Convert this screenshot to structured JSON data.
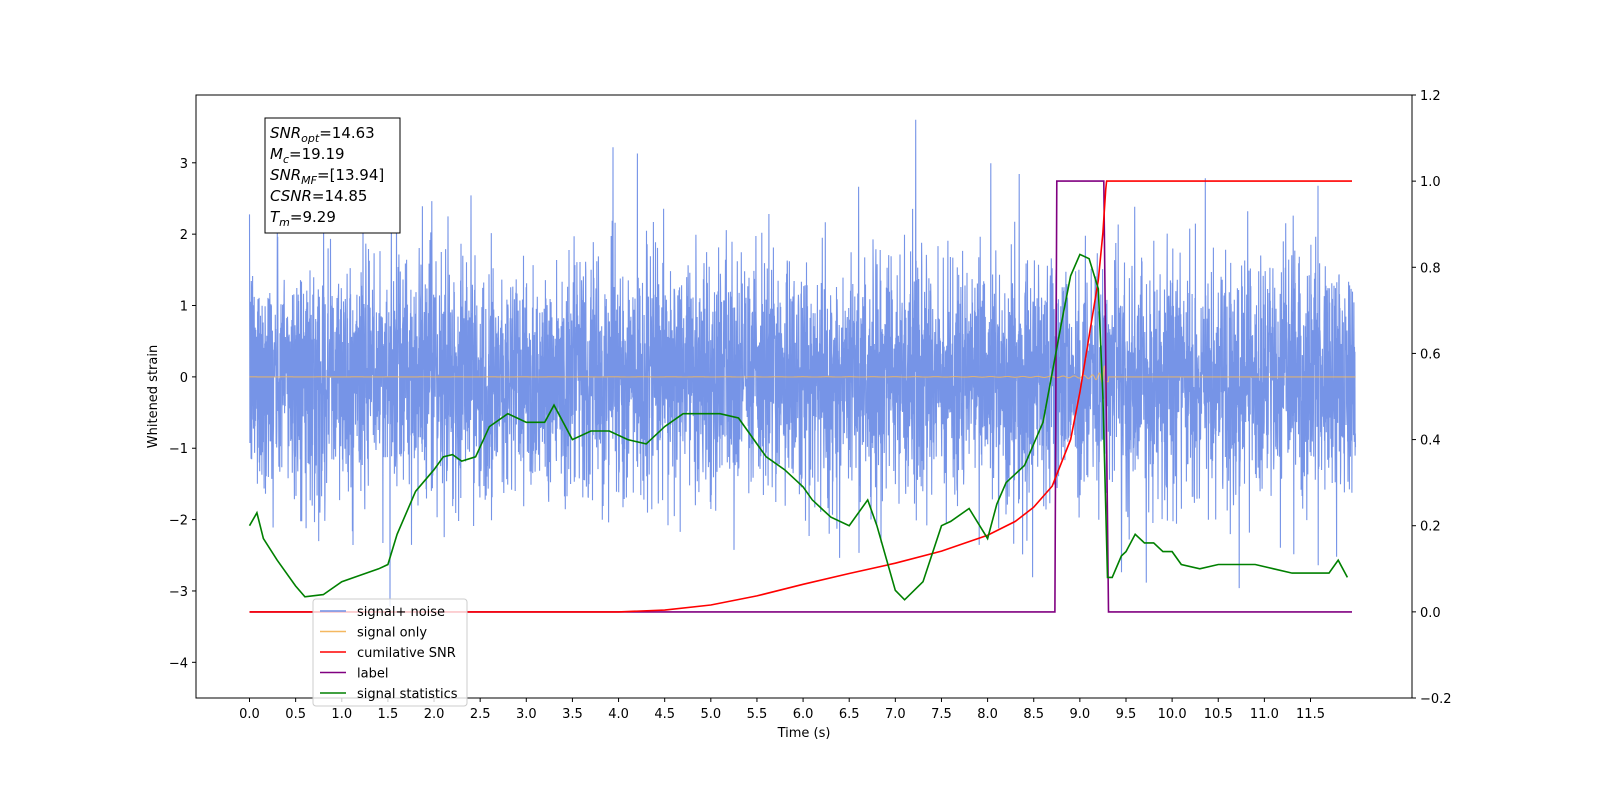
{
  "chart_data": {
    "type": "line",
    "title": "",
    "xlabel": "Time (s)",
    "ylabel": "Whitened strain",
    "xlim": [
      -0.58,
      12.6
    ],
    "ylim": [
      -4.5,
      3.95
    ],
    "y2lim": [
      -0.2,
      1.2
    ],
    "x_ticks": [
      "0.0",
      "0.5",
      "1.0",
      "1.5",
      "2.0",
      "2.5",
      "3.0",
      "3.5",
      "4.0",
      "4.5",
      "5.0",
      "5.5",
      "6.0",
      "6.5",
      "7.0",
      "7.5",
      "8.0",
      "8.5",
      "9.0",
      "9.5",
      "10.0",
      "10.5",
      "11.0",
      "11.5"
    ],
    "y_ticks": [
      "3",
      "2",
      "1",
      "0",
      "−1",
      "−2",
      "−3",
      "−4"
    ],
    "y2_ticks": [
      "1.2",
      "1.0",
      "0.8",
      "0.6",
      "0.4",
      "0.2",
      "0.0",
      "−0.2"
    ],
    "grid": false,
    "legend_position": "lower-left",
    "merger_time": 9.29,
    "label_window": [
      8.73,
      9.28
    ],
    "annotation": {
      "lines": [
        {
          "sym": "SNR",
          "sub": "opt",
          "value": "=14.63"
        },
        {
          "sym": "M",
          "sub": "c",
          "value": "=19.19"
        },
        {
          "sym": "SNR",
          "sub": "MF",
          "value": "=[13.94]"
        },
        {
          "sym": "CSNR",
          "sub": "",
          "value": "=14.85"
        },
        {
          "sym": "T",
          "sub": "m",
          "value": "=9.29"
        }
      ]
    },
    "series": [
      {
        "name": "signal+ noise",
        "color": "#6f8ee6",
        "axis": "left",
        "kind": "noise",
        "amplitude_typical": 1.9,
        "amplitude_peak": 3.6
      },
      {
        "name": "signal only",
        "color": "#f4b860",
        "axis": "left",
        "kind": "chirp"
      },
      {
        "name": "cumilative SNR",
        "color": "#ff0000",
        "axis": "right",
        "x": [
          0.0,
          4.0,
          4.5,
          5.0,
          5.5,
          6.0,
          6.5,
          7.0,
          7.5,
          8.0,
          8.3,
          8.5,
          8.7,
          8.9,
          9.0,
          9.1,
          9.2,
          9.25,
          9.28,
          9.29,
          11.95
        ],
        "y": [
          0.0,
          0.0,
          0.004,
          0.016,
          0.037,
          0.064,
          0.089,
          0.113,
          0.141,
          0.178,
          0.21,
          0.243,
          0.292,
          0.4,
          0.51,
          0.64,
          0.77,
          0.88,
          0.98,
          1.0,
          1.0
        ]
      },
      {
        "name": "label",
        "color": "#800080",
        "axis": "right",
        "x": [
          0.0,
          8.73,
          8.75,
          9.26,
          9.31,
          11.95
        ],
        "y": [
          0.0,
          0.0,
          1.0,
          1.0,
          0.0,
          0.0
        ]
      },
      {
        "name": "signal statistics",
        "color": "#008000",
        "axis": "right",
        "x": [
          0.0,
          0.08,
          0.15,
          0.3,
          0.5,
          0.6,
          0.8,
          1.0,
          1.2,
          1.4,
          1.5,
          1.6,
          1.8,
          2.0,
          2.1,
          2.2,
          2.3,
          2.45,
          2.6,
          2.8,
          2.9,
          3.0,
          3.2,
          3.3,
          3.5,
          3.7,
          3.9,
          4.1,
          4.3,
          4.5,
          4.7,
          4.9,
          5.1,
          5.3,
          5.5,
          5.6,
          5.8,
          6.0,
          6.1,
          6.2,
          6.3,
          6.5,
          6.7,
          6.8,
          7.0,
          7.1,
          7.3,
          7.5,
          7.6,
          7.8,
          8.0,
          8.1,
          8.2,
          8.4,
          8.6,
          8.8,
          8.9,
          9.0,
          9.1,
          9.2,
          9.25,
          9.3,
          9.35,
          9.45,
          9.5,
          9.6,
          9.7,
          9.8,
          9.9,
          10.0,
          10.1,
          10.3,
          10.5,
          10.7,
          10.9,
          11.1,
          11.3,
          11.5,
          11.7,
          11.8,
          11.9
        ],
        "y": [
          0.2,
          0.23,
          0.17,
          0.12,
          0.06,
          0.035,
          0.04,
          0.07,
          0.085,
          0.1,
          0.11,
          0.18,
          0.28,
          0.33,
          0.36,
          0.365,
          0.35,
          0.36,
          0.43,
          0.46,
          0.45,
          0.44,
          0.44,
          0.48,
          0.4,
          0.42,
          0.42,
          0.4,
          0.39,
          0.43,
          0.46,
          0.46,
          0.46,
          0.45,
          0.39,
          0.36,
          0.33,
          0.29,
          0.26,
          0.24,
          0.22,
          0.2,
          0.26,
          0.2,
          0.05,
          0.028,
          0.07,
          0.2,
          0.21,
          0.24,
          0.17,
          0.25,
          0.3,
          0.34,
          0.44,
          0.67,
          0.78,
          0.83,
          0.82,
          0.75,
          0.5,
          0.08,
          0.08,
          0.13,
          0.14,
          0.18,
          0.16,
          0.16,
          0.14,
          0.14,
          0.11,
          0.1,
          0.11,
          0.11,
          0.11,
          0.1,
          0.09,
          0.09,
          0.09,
          0.12,
          0.08
        ]
      }
    ]
  }
}
